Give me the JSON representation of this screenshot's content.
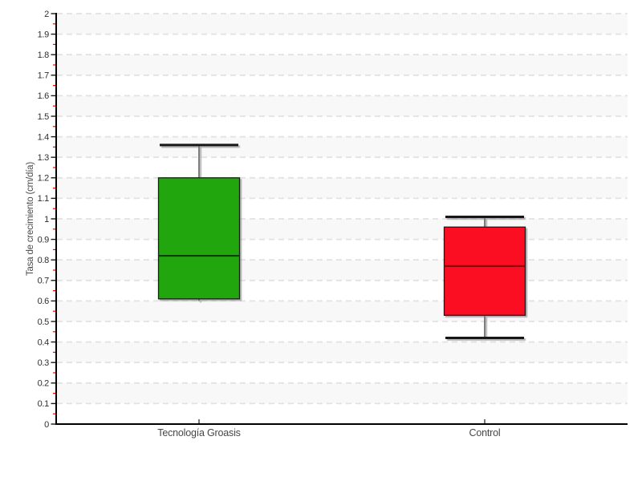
{
  "chart_data": {
    "type": "boxplot",
    "title": "",
    "xlabel": "",
    "ylabel": "Tasa de crecimiento (cm/día)",
    "categories": [
      "Tecnología Groasis",
      "Control"
    ],
    "y_axis": {
      "min": 0,
      "max": 2,
      "major_step": 0.1,
      "minor_step": 0.05
    },
    "series": [
      {
        "name": "Tecnología Groasis",
        "min": 0.6,
        "q1": 0.61,
        "median": 0.82,
        "q3": 1.2,
        "max": 1.36,
        "fill_color": "#23a60f",
        "median_color": "#0b4105"
      },
      {
        "name": "Control",
        "min": 0.42,
        "q1": 0.53,
        "median": 0.77,
        "q3": 0.96,
        "max": 1.01,
        "fill_color": "#fb0d21",
        "median_color": "#8f060f"
      }
    ],
    "legend": "none",
    "grid": "horizontal dashed lines every 0.1, alternating background bands",
    "colors": {
      "band_gray": "#f8f8f8",
      "gridline": "#e2e2e2",
      "axis_line": "#000000",
      "major_tick": "#1a1a1a",
      "minor_tick": "#ee0000",
      "tick_label": "#2e2e2e",
      "whisker_line": "#7d7d7d",
      "whisker_cap": "#141414",
      "box_border": "#1c1c1c"
    }
  }
}
